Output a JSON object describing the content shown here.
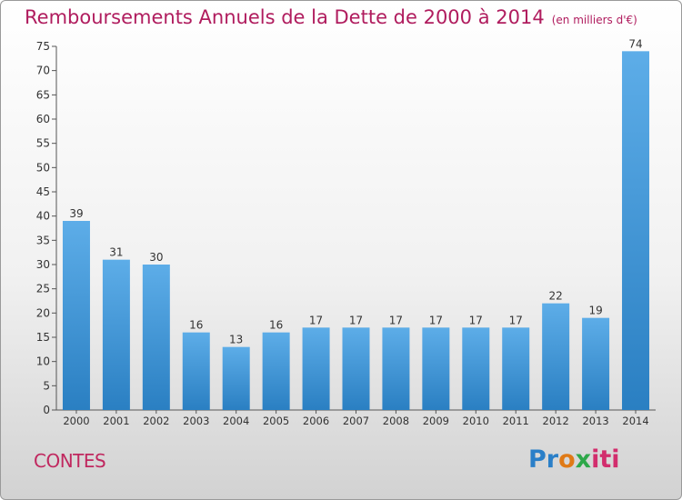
{
  "chart_data": {
    "type": "bar",
    "title": "Remboursements Annuels de la Dette de 2000 à 2014",
    "unit_label": "(en milliers d'€)",
    "categories": [
      "2000",
      "2001",
      "2002",
      "2003",
      "2004",
      "2005",
      "2006",
      "2007",
      "2008",
      "2009",
      "2010",
      "2011",
      "2012",
      "2013",
      "2014"
    ],
    "values": [
      39,
      31,
      30,
      16,
      13,
      16,
      17,
      17,
      17,
      17,
      17,
      17,
      22,
      19,
      74
    ],
    "ylim": [
      0,
      75
    ],
    "yticks": [
      0,
      5,
      10,
      15,
      20,
      25,
      30,
      35,
      40,
      45,
      50,
      55,
      60,
      65,
      70,
      75
    ],
    "grid": false,
    "legend": "none",
    "bar_color_top": "#5dade8",
    "bar_color_bottom": "#2a7fc2"
  },
  "footer": {
    "commune": "CONTES",
    "logo": "Proxiti",
    "logo_colors": [
      "#2a7fc8",
      "#e07a16",
      "#2ea84a",
      "#d22d6d"
    ]
  }
}
